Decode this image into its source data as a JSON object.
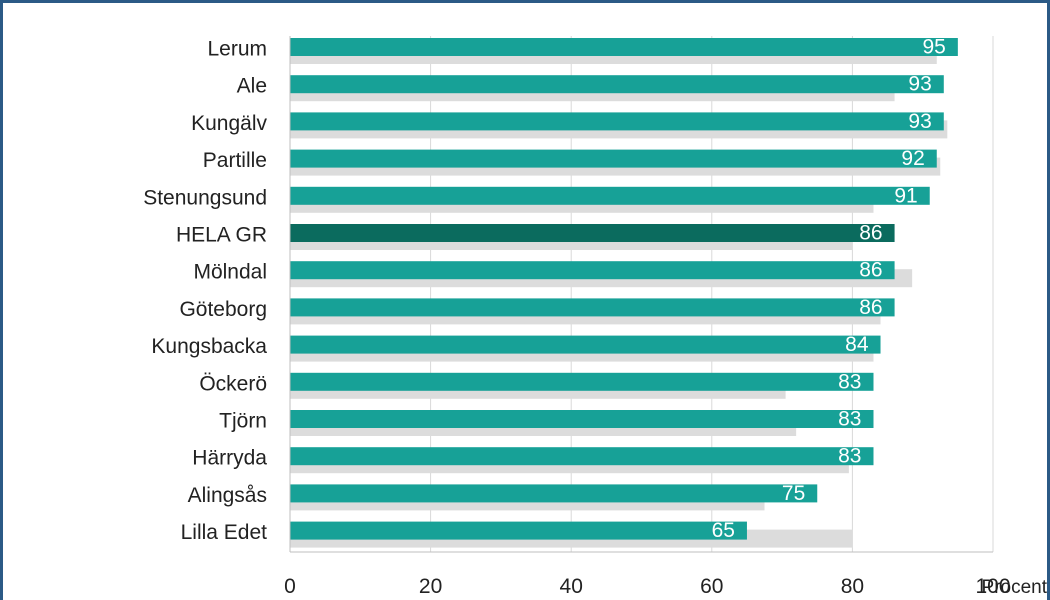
{
  "chart_data": {
    "type": "bar",
    "orientation": "horizontal",
    "categories": [
      "Lerum",
      "Ale",
      "Kungälv",
      "Partille",
      "Stenungsund",
      "HELA GR",
      "Mölndal",
      "Göteborg",
      "Kungsbacka",
      "Öckerö",
      "Tjörn",
      "Härryda",
      "Alingsås",
      "Lilla Edet"
    ],
    "series": [
      {
        "values": [
          95,
          93,
          93,
          92,
          91,
          86,
          86,
          86,
          84,
          83,
          83,
          83,
          75,
          65
        ]
      },
      {
        "values": [
          92,
          86,
          93.5,
          92.5,
          83,
          80,
          88.5,
          84,
          83,
          70.5,
          72,
          79.5,
          67.5,
          80
        ]
      }
    ],
    "data_labels": [
      "95",
      "93",
      "93",
      "92",
      "91",
      "86",
      "86",
      "86",
      "84",
      "83",
      "83",
      "83",
      "75",
      "65"
    ],
    "highlight_category": "HELA GR",
    "xlim": [
      0,
      100
    ],
    "x_ticks": [
      "0",
      "20",
      "40",
      "60",
      "80",
      "100"
    ],
    "xlabel": "Procent",
    "grid": "vertical",
    "colors": {
      "primary": "#17a197",
      "highlight": "#0b6b5e",
      "secondary": "#dcdcdc",
      "grid": "#d9d9d9",
      "border": "#2b5a86"
    }
  }
}
